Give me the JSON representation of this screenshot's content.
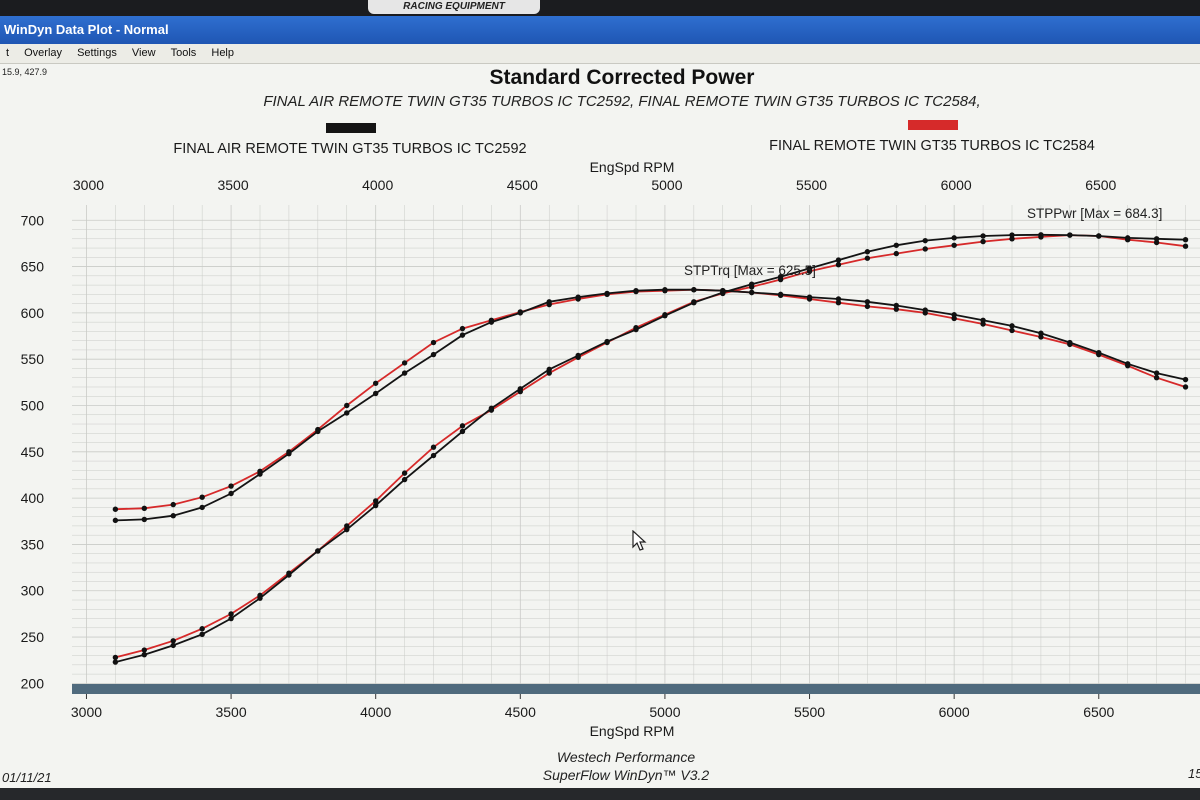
{
  "window": {
    "brand": "RACING EQUIPMENT",
    "title": "WinDyn Data Plot - Normal",
    "menu": [
      "t",
      "Overlay",
      "Settings",
      "View",
      "Tools",
      "Help"
    ],
    "coords": "15.9, 427.9"
  },
  "colors": {
    "run1": "#141414",
    "run2": "#d62a2a",
    "grid": "#c9cbc7",
    "bar": "#4f6a7d"
  },
  "chart_data": {
    "type": "line",
    "title": "Standard Corrected Power",
    "subtitle": "FINAL AIR REMOTE TWIN GT35 TURBOS IC TC2592, FINAL REMOTE TWIN GT35 TURBOS IC TC2584,",
    "xlabel": "EngSpd RPM",
    "xlim": [
      2950,
      6850
    ],
    "ylim": [
      195,
      710
    ],
    "x_ticks": [
      3000,
      3500,
      4000,
      4500,
      5000,
      5500,
      6000,
      6500
    ],
    "y_ticks": [
      200,
      250,
      300,
      350,
      400,
      450,
      500,
      550,
      600,
      650,
      700
    ],
    "legend": [
      "FINAL AIR REMOTE TWIN GT35 TURBOS IC TC2592",
      "FINAL REMOTE TWIN GT35 TURBOS IC TC2584"
    ],
    "x": [
      3100,
      3200,
      3300,
      3400,
      3500,
      3600,
      3700,
      3800,
      3900,
      4000,
      4100,
      4200,
      4300,
      4400,
      4500,
      4600,
      4700,
      4800,
      4900,
      5000,
      5100,
      5200,
      5300,
      5400,
      5500,
      5600,
      5700,
      5800,
      5900,
      6000,
      6100,
      6200,
      6300,
      6400,
      6500,
      6600,
      6700,
      6800
    ],
    "series": [
      {
        "name": "FINAL AIR REMOTE TWIN GT35 TURBOS IC TC2592",
        "metric": "STPTrq",
        "values": [
          376,
          377,
          381,
          390,
          405,
          426,
          448,
          472,
          492,
          513,
          535,
          555,
          576,
          590,
          600,
          612,
          617,
          621,
          624,
          625,
          625,
          624,
          622,
          620,
          617,
          615,
          612,
          608,
          603,
          598,
          592,
          586,
          578,
          568,
          557,
          545,
          535,
          528
        ]
      },
      {
        "name": "FINAL REMOTE TWIN GT35 TURBOS IC TC2584",
        "metric": "STPTrq",
        "values": [
          388,
          389,
          393,
          401,
          413,
          429,
          450,
          474,
          500,
          524,
          546,
          568,
          583,
          592,
          601,
          609,
          615,
          620,
          623,
          624,
          625,
          624,
          622,
          619,
          615,
          611,
          607,
          604,
          600,
          594,
          588,
          581,
          574,
          566,
          555,
          543,
          530,
          520
        ]
      },
      {
        "name": "FINAL AIR REMOTE TWIN GT35 TURBOS IC TC2592",
        "metric": "STPPwr",
        "values": [
          223,
          231,
          241,
          253,
          270,
          292,
          317,
          343,
          366,
          392,
          420,
          446,
          472,
          497,
          518,
          539,
          554,
          569,
          582,
          597,
          611,
          622,
          631,
          639,
          648,
          657,
          666,
          673,
          678,
          681,
          683,
          684,
          684.3,
          684,
          683,
          681,
          680,
          679
        ]
      },
      {
        "name": "FINAL REMOTE TWIN GT35 TURBOS IC TC2584",
        "metric": "STPPwr",
        "values": [
          228,
          236,
          246,
          259,
          275,
          295,
          319,
          343,
          370,
          397,
          427,
          455,
          478,
          495,
          515,
          535,
          552,
          568,
          584,
          598,
          612,
          621,
          628,
          636,
          645,
          652,
          659,
          664,
          669,
          673,
          677,
          680,
          682,
          684,
          683,
          679,
          676,
          672
        ]
      }
    ],
    "annotations": {
      "torque_max": "STPTrq [Max = 625.5]",
      "power_max": "STPPwr [Max = 684.3]"
    },
    "footer": {
      "org": "Westech Performance",
      "software": "SuperFlow WinDyn™ V3.2",
      "date": "01/11/21",
      "page": "15"
    }
  }
}
